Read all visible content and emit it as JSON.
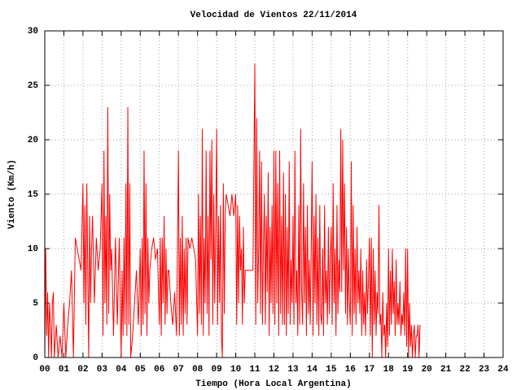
{
  "chart_data": {
    "type": "line",
    "title": "Velocidad de Vientos 22/11/2014",
    "xlabel": "Tiempo (Hora Local Argentina)",
    "ylabel": "Viento (Km/h)",
    "color": "#ff0000",
    "grid": true,
    "xlim": [
      0,
      24
    ],
    "ylim": [
      0,
      30
    ],
    "yticks": [
      0,
      5,
      10,
      15,
      20,
      25,
      30
    ],
    "xticks": [
      {
        "value": 0,
        "label": "00"
      },
      {
        "value": 1,
        "label": "01"
      },
      {
        "value": 2,
        "label": "02"
      },
      {
        "value": 3,
        "label": "03"
      },
      {
        "value": 4,
        "label": "04"
      },
      {
        "value": 5,
        "label": "05"
      },
      {
        "value": 6,
        "label": "06"
      },
      {
        "value": 7,
        "label": "07"
      },
      {
        "value": 8,
        "label": "08"
      },
      {
        "value": 9,
        "label": "09"
      },
      {
        "value": 10,
        "label": "10"
      },
      {
        "value": 11,
        "label": "11"
      },
      {
        "value": 12,
        "label": "12"
      },
      {
        "value": 13,
        "label": "13"
      },
      {
        "value": 14,
        "label": "14"
      },
      {
        "value": 15,
        "label": "15"
      },
      {
        "value": 16,
        "label": "16"
      },
      {
        "value": 17,
        "label": "17"
      },
      {
        "value": 18,
        "label": "18"
      },
      {
        "value": 19,
        "label": "19"
      },
      {
        "value": 20,
        "label": "20"
      },
      {
        "value": 21,
        "label": "21"
      },
      {
        "value": 22,
        "label": "22"
      },
      {
        "value": 23,
        "label": "23"
      },
      {
        "value": 24,
        "label": "24"
      }
    ],
    "x": [
      0.0,
      0.05,
      0.1,
      0.15,
      0.2,
      0.25,
      0.3,
      0.35,
      0.4,
      0.45,
      0.5,
      0.6,
      0.7,
      0.8,
      0.9,
      1.0,
      1.1,
      1.2,
      1.3,
      1.4,
      1.5,
      1.6,
      1.7,
      1.8,
      1.9,
      2.0,
      2.05,
      2.1,
      2.15,
      2.2,
      2.25,
      2.3,
      2.35,
      2.4,
      2.45,
      2.5,
      2.6,
      2.7,
      2.8,
      2.9,
      3.0,
      3.05,
      3.1,
      3.15,
      3.2,
      3.25,
      3.3,
      3.35,
      3.4,
      3.45,
      3.5,
      3.6,
      3.7,
      3.8,
      3.9,
      4.0,
      4.05,
      4.1,
      4.15,
      4.2,
      4.25,
      4.3,
      4.35,
      4.4,
      4.45,
      4.5,
      4.6,
      4.7,
      4.8,
      4.9,
      5.0,
      5.05,
      5.1,
      5.15,
      5.2,
      5.25,
      5.3,
      5.35,
      5.4,
      5.45,
      5.5,
      5.6,
      5.7,
      5.8,
      5.9,
      6.0,
      6.05,
      6.1,
      6.15,
      6.2,
      6.25,
      6.3,
      6.35,
      6.4,
      6.45,
      6.5,
      6.6,
      6.7,
      6.8,
      6.9,
      7.0,
      7.05,
      7.1,
      7.15,
      7.2,
      7.25,
      7.3,
      7.35,
      7.4,
      7.45,
      7.5,
      7.6,
      7.7,
      7.8,
      7.9,
      8.0,
      8.05,
      8.1,
      8.15,
      8.2,
      8.25,
      8.3,
      8.35,
      8.4,
      8.45,
      8.5,
      8.55,
      8.6,
      8.65,
      8.7,
      8.75,
      8.8,
      8.85,
      8.9,
      8.95,
      9.0,
      9.05,
      9.1,
      9.15,
      9.2,
      9.25,
      9.3,
      9.35,
      9.4,
      9.45,
      9.5,
      9.6,
      9.7,
      9.8,
      9.9,
      10.0,
      10.05,
      10.1,
      10.15,
      10.2,
      10.25,
      10.3,
      10.35,
      10.4,
      10.45,
      10.5,
      10.6,
      10.7,
      10.8,
      10.9,
      11.0,
      11.05,
      11.1,
      11.15,
      11.2,
      11.25,
      11.3,
      11.35,
      11.4,
      11.45,
      11.5,
      11.55,
      11.6,
      11.65,
      11.7,
      11.75,
      11.8,
      11.85,
      11.9,
      11.95,
      12.0,
      12.05,
      12.1,
      12.15,
      12.2,
      12.25,
      12.3,
      12.35,
      12.4,
      12.45,
      12.5,
      12.55,
      12.6,
      12.65,
      12.7,
      12.75,
      12.8,
      12.85,
      12.9,
      12.95,
      13.0,
      13.05,
      13.1,
      13.15,
      13.2,
      13.25,
      13.3,
      13.35,
      13.4,
      13.45,
      13.5,
      13.55,
      13.6,
      13.65,
      13.7,
      13.75,
      13.8,
      13.85,
      13.9,
      13.95,
      14.0,
      14.05,
      14.1,
      14.15,
      14.2,
      14.25,
      14.3,
      14.35,
      14.4,
      14.45,
      14.5,
      14.55,
      14.6,
      14.65,
      14.7,
      14.75,
      14.8,
      14.85,
      14.9,
      14.95,
      15.0,
      15.05,
      15.1,
      15.15,
      15.2,
      15.25,
      15.3,
      15.35,
      15.4,
      15.45,
      15.5,
      15.55,
      15.6,
      15.65,
      15.7,
      15.75,
      15.8,
      15.85,
      15.9,
      15.95,
      16.0,
      16.05,
      16.1,
      16.15,
      16.2,
      16.25,
      16.3,
      16.35,
      16.4,
      16.45,
      16.5,
      16.55,
      16.6,
      16.65,
      16.7,
      16.75,
      16.8,
      16.85,
      16.9,
      16.95,
      17.0,
      17.05,
      17.1,
      17.15,
      17.2,
      17.25,
      17.3,
      17.35,
      17.4,
      17.45,
      17.5,
      17.55,
      17.6,
      17.65,
      17.7,
      17.75,
      17.8,
      17.85,
      17.9,
      17.95,
      18.0,
      18.05,
      18.1,
      18.15,
      18.2,
      18.25,
      18.3,
      18.35,
      18.4,
      18.45,
      18.5,
      18.55,
      18.6,
      18.65,
      18.7,
      18.75,
      18.8,
      18.85,
      18.9,
      18.95,
      19.0,
      19.05,
      19.1,
      19.15,
      19.2,
      19.25,
      19.3,
      19.35,
      19.4,
      19.45,
      19.5,
      19.55,
      19.6,
      19.65
    ],
    "values": [
      0,
      10,
      2,
      6,
      0,
      5,
      3,
      0,
      5,
      6,
      0,
      3,
      0,
      2,
      0,
      5,
      0,
      3,
      5,
      8,
      0,
      11,
      10,
      9,
      8,
      16,
      5,
      14,
      3,
      16,
      8,
      0,
      13,
      5,
      10,
      13,
      5,
      11,
      8,
      10,
      16,
      2,
      19,
      5,
      13,
      3,
      23,
      4,
      15,
      8,
      10,
      2,
      11,
      3,
      11,
      0,
      8,
      2,
      11,
      3,
      16,
      2,
      23,
      3,
      16,
      0,
      2,
      5,
      8,
      3,
      10,
      2,
      11,
      3,
      19,
      4,
      16,
      2,
      11,
      5,
      8,
      10,
      11,
      9,
      10,
      3,
      11,
      2,
      11,
      5,
      13,
      3,
      10,
      4,
      8,
      8,
      5,
      3,
      6,
      2,
      19,
      2,
      11,
      3,
      13,
      2,
      10,
      4,
      11,
      3,
      11,
      10,
      11,
      10,
      9,
      2,
      15,
      4,
      13,
      3,
      21,
      2,
      11,
      5,
      19,
      4,
      13,
      2,
      19,
      9,
      20,
      3,
      15,
      5,
      12,
      21,
      3,
      13,
      5,
      14,
      2,
      0,
      16,
      4,
      13,
      15,
      14,
      13,
      15,
      13,
      15,
      3,
      14,
      5,
      13,
      8,
      10,
      3,
      12,
      5,
      8,
      8,
      8,
      8,
      8,
      27,
      3,
      22,
      5,
      10,
      19,
      4,
      18,
      3,
      10,
      15,
      3,
      13,
      6,
      17,
      2,
      12,
      5,
      14,
      4,
      19,
      3,
      19,
      5,
      16,
      2,
      19,
      4,
      13,
      3,
      17,
      3,
      15,
      2,
      12,
      4,
      18,
      3,
      9,
      5,
      13,
      3,
      19,
      5,
      8,
      2,
      14,
      3,
      21,
      6,
      3,
      16,
      5,
      12,
      2,
      14,
      4,
      9,
      3,
      10,
      18,
      2,
      13,
      5,
      15,
      3,
      11,
      2,
      14,
      4,
      3,
      10,
      2,
      14,
      5,
      8,
      3,
      12,
      4,
      9,
      12,
      3,
      16,
      5,
      10,
      2,
      14,
      4,
      9,
      6,
      21,
      6,
      20,
      8,
      16,
      4,
      12,
      3,
      10,
      5,
      3,
      18,
      2,
      14,
      4,
      10,
      3,
      12,
      5,
      8,
      4,
      10,
      2,
      8,
      3,
      6,
      2,
      9,
      4,
      7,
      11,
      2,
      11,
      0,
      10,
      3,
      8,
      2,
      6,
      4,
      14,
      3,
      4,
      0,
      6,
      2,
      3,
      0,
      5,
      1,
      10,
      2,
      8,
      3,
      10,
      4,
      7,
      2,
      9,
      3,
      5,
      3,
      7,
      2,
      4,
      3,
      6,
      2,
      10,
      1,
      10,
      0,
      5,
      1,
      3,
      0,
      2,
      3,
      0,
      2,
      2,
      3,
      0,
      3
    ]
  }
}
